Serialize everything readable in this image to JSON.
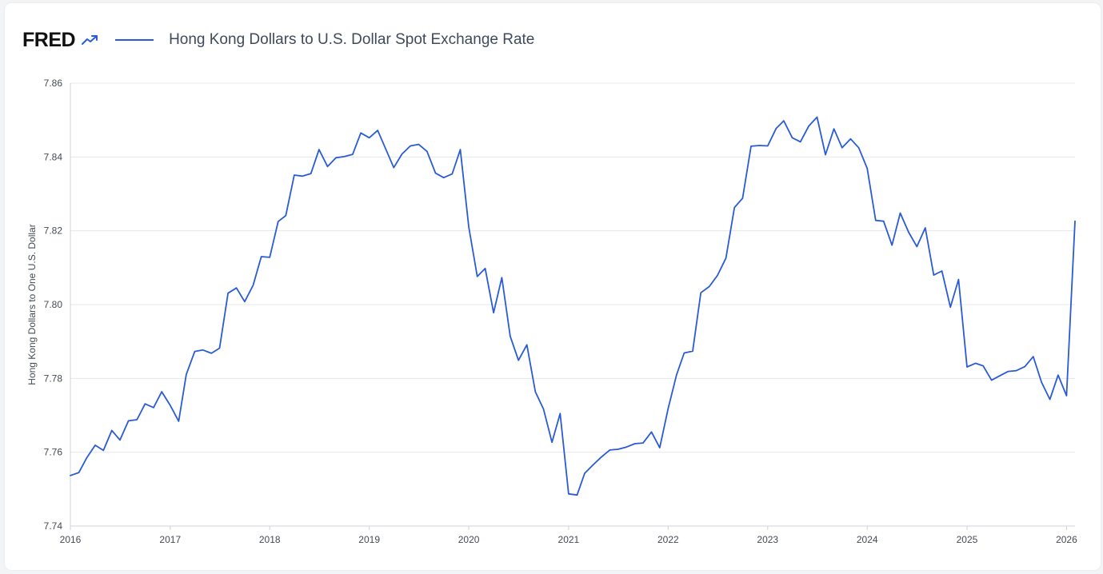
{
  "header": {
    "logo_text": "FRED",
    "logo_icon": "trend-arrow-icon",
    "legend_label": "Hong Kong Dollars to U.S. Dollar Spot Exchange Rate"
  },
  "colors": {
    "series": "#2a5bd7",
    "grid": "#e5e7eb",
    "axis": "#cfd3d8"
  },
  "chart_data": {
    "type": "line",
    "title": "",
    "xlabel": "",
    "ylabel": "Hong Kong Dollars to One U.S. Dollar",
    "xlim": [
      "2016-01-01",
      "2026-02-01"
    ],
    "ylim": [
      7.74,
      7.86
    ],
    "y_ticks": [
      "7.74",
      "7.76",
      "7.78",
      "7.80",
      "7.82",
      "7.84",
      "7.86"
    ],
    "x_ticks": [
      "2016",
      "2017",
      "2018",
      "2019",
      "2020",
      "2021",
      "2022",
      "2023",
      "2024",
      "2025",
      "2026"
    ],
    "grid": true,
    "legend": "top-left",
    "series": [
      {
        "name": "Hong Kong Dollars to U.S. Dollar Spot Exchange Rate",
        "x": [
          "2016-01",
          "2016-02",
          "2016-03",
          "2016-04",
          "2016-05",
          "2016-06",
          "2016-07",
          "2016-08",
          "2016-09",
          "2016-10",
          "2016-11",
          "2016-12",
          "2017-01",
          "2017-02",
          "2017-03",
          "2017-04",
          "2017-05",
          "2017-06",
          "2017-07",
          "2017-08",
          "2017-09",
          "2017-10",
          "2017-11",
          "2017-12",
          "2018-01",
          "2018-02",
          "2018-03",
          "2018-04",
          "2018-05",
          "2018-06",
          "2018-07",
          "2018-08",
          "2018-09",
          "2018-10",
          "2018-11",
          "2018-12",
          "2019-01",
          "2019-02",
          "2019-03",
          "2019-04",
          "2019-05",
          "2019-06",
          "2019-07",
          "2019-08",
          "2019-09",
          "2019-10",
          "2019-11",
          "2019-12",
          "2020-01",
          "2020-02",
          "2020-03",
          "2020-04",
          "2020-05",
          "2020-06",
          "2020-07",
          "2020-08",
          "2020-09",
          "2020-10",
          "2020-11",
          "2020-12",
          "2021-01",
          "2021-02",
          "2021-03",
          "2021-04",
          "2021-05",
          "2021-06",
          "2021-07",
          "2021-08",
          "2021-09",
          "2021-10",
          "2021-11",
          "2021-12",
          "2022-01",
          "2022-02",
          "2022-03",
          "2022-04",
          "2022-05",
          "2022-06",
          "2022-07",
          "2022-08",
          "2022-09",
          "2022-10",
          "2022-11",
          "2022-12",
          "2023-01",
          "2023-02",
          "2023-03",
          "2023-04",
          "2023-05",
          "2023-06",
          "2023-07",
          "2023-08",
          "2023-09",
          "2023-10",
          "2023-11",
          "2023-12",
          "2024-01",
          "2024-02",
          "2024-03",
          "2024-04",
          "2024-05",
          "2024-06",
          "2024-07",
          "2024-08",
          "2024-09",
          "2024-10",
          "2024-11",
          "2024-12",
          "2025-01",
          "2025-02",
          "2025-03",
          "2025-04",
          "2025-05",
          "2025-06",
          "2025-07",
          "2025-08",
          "2025-09",
          "2025-10",
          "2025-11",
          "2025-12",
          "2026-01",
          "2026-02"
        ],
        "values": [
          7.7537,
          7.7545,
          7.7585,
          7.7619,
          7.7605,
          7.7659,
          7.7633,
          7.7685,
          7.7688,
          7.7731,
          7.7721,
          7.7764,
          7.7727,
          7.7684,
          7.7811,
          7.7873,
          7.7877,
          7.7868,
          7.7882,
          7.8031,
          7.8045,
          7.8008,
          7.8052,
          7.813,
          7.8128,
          7.8225,
          7.8241,
          7.8351,
          7.8348,
          7.8355,
          7.842,
          7.8374,
          7.8398,
          7.8401,
          7.8407,
          7.8465,
          7.8452,
          7.8472,
          7.8424,
          7.8371,
          7.8408,
          7.843,
          7.8434,
          7.8415,
          7.8356,
          7.8344,
          7.8354,
          7.842,
          7.821,
          7.8076,
          7.8098,
          7.7978,
          7.8073,
          7.7914,
          7.7849,
          7.7891,
          7.7764,
          7.7717,
          7.7627,
          7.7705,
          7.7487,
          7.7484,
          7.7543,
          7.7566,
          7.7587,
          7.7606,
          7.7608,
          7.7614,
          7.7623,
          7.7625,
          7.7655,
          7.7612,
          7.7718,
          7.781,
          7.7869,
          7.7874,
          7.8032,
          7.8049,
          7.8079,
          7.8126,
          7.8263,
          7.8288,
          7.8429,
          7.8431,
          7.843,
          7.8477,
          7.8498,
          7.8452,
          7.8441,
          7.8484,
          7.8508,
          7.8406,
          7.8476,
          7.8425,
          7.8449,
          7.8425,
          7.8369,
          7.8228,
          7.8226,
          7.8161,
          7.8248,
          7.8196,
          7.8157,
          7.8208,
          7.808,
          7.8091,
          7.7993,
          7.8068,
          7.7831,
          7.7841,
          7.7834,
          7.7795,
          7.7807,
          7.7819,
          7.7821,
          7.7832,
          7.7859,
          7.779,
          7.7743,
          7.7809,
          7.7753,
          7.8226
        ]
      }
    ]
  }
}
